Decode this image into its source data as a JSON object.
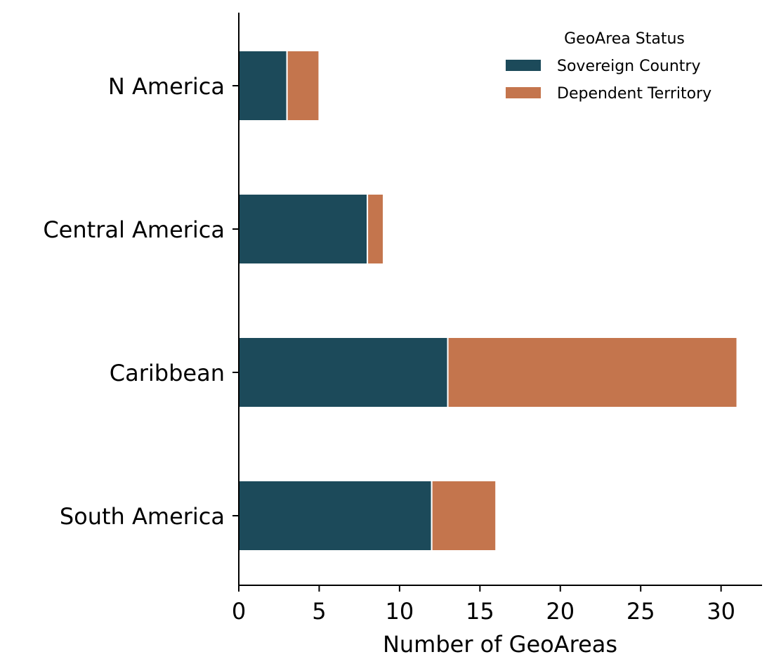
{
  "chart_data": {
    "type": "bar",
    "orientation": "horizontal",
    "stacked": true,
    "categories": [
      "N America",
      "Central America",
      "Caribbean",
      "South America"
    ],
    "series": [
      {
        "name": "Sovereign Country",
        "values": [
          3,
          8,
          13,
          12
        ],
        "color": "#1c4a5a"
      },
      {
        "name": "Dependent Territory",
        "values": [
          2,
          1,
          18,
          4
        ],
        "color": "#c4754d"
      }
    ],
    "title": "",
    "xlabel": "Number of GeoAreas",
    "ylabel": "",
    "xlim": [
      0,
      32.55
    ],
    "xticks": [
      0,
      5,
      10,
      15,
      20,
      25,
      30
    ],
    "legend": {
      "title": "GeoArea Status",
      "position": "top-right"
    },
    "grid": false
  }
}
